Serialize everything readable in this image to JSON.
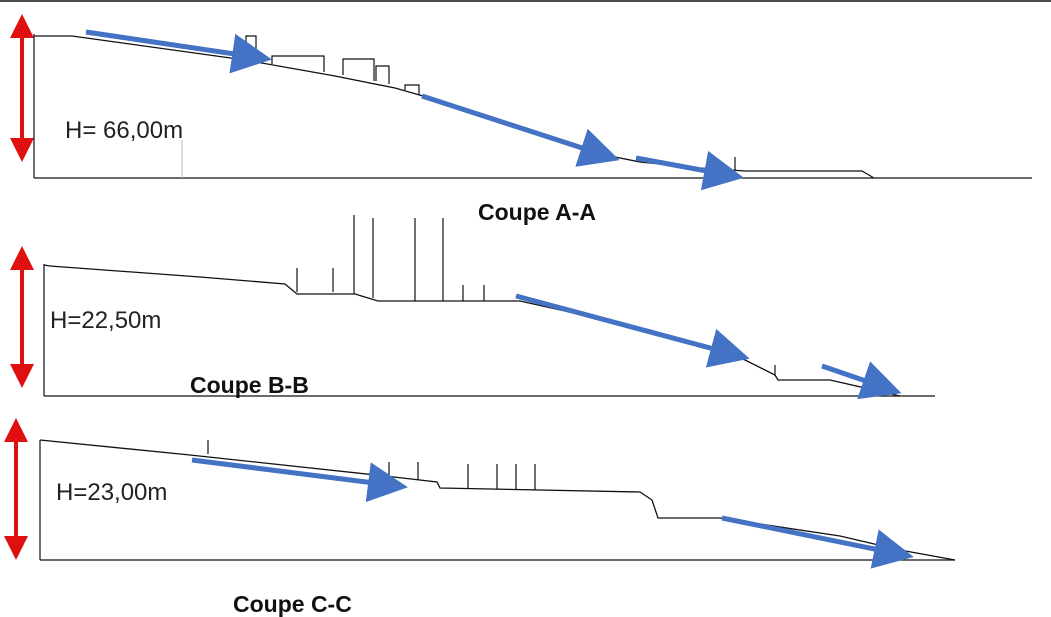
{
  "colors": {
    "ground_line": "#111111",
    "flow_arrow": "#4472C4",
    "height_arrow": "#E01010",
    "background": "#ffffff"
  },
  "sections": [
    {
      "title": "Coupe A-A",
      "height_label": "H= 66,00m"
    },
    {
      "title": "Coupe B-B",
      "height_label": "H=22,50m"
    },
    {
      "title": "Coupe C-C",
      "height_label": "H=23,00m"
    }
  ]
}
